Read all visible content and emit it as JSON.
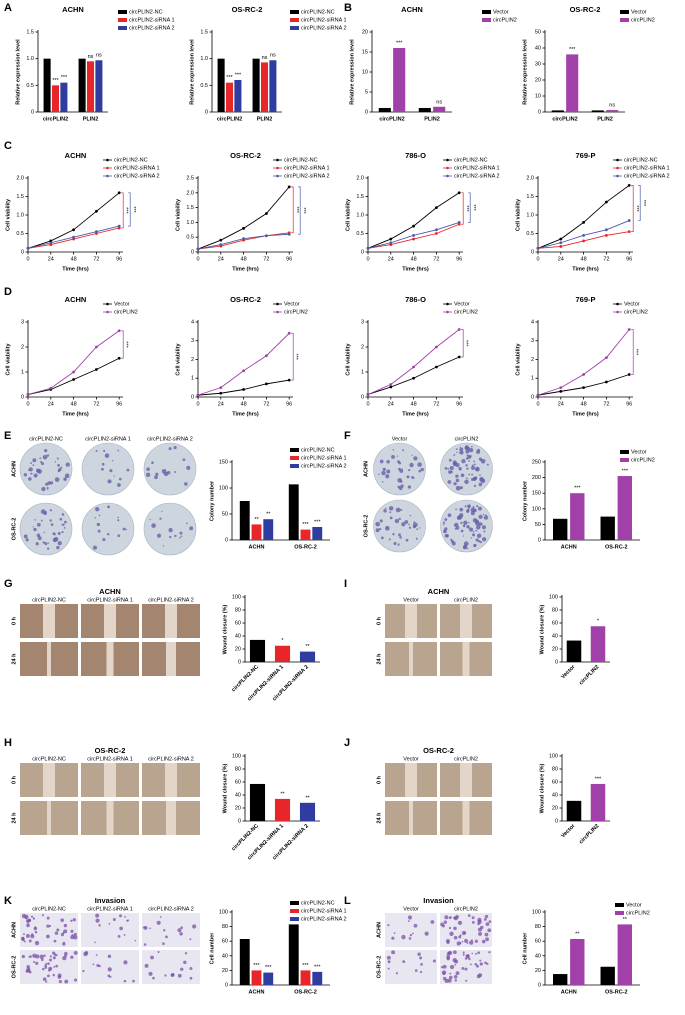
{
  "panel_labels": [
    "A",
    "B",
    "C",
    "D",
    "E",
    "F",
    "G",
    "I",
    "H",
    "J",
    "K",
    "L"
  ],
  "chart_data": [
    {
      "type": "bar",
      "title": "ACHN",
      "categories": [
        "circPLIN2",
        "PLIN2"
      ],
      "ylabel": "Relative expression level",
      "ylim": [
        0,
        1.5
      ],
      "yticks": [
        0,
        0.5,
        {
          "value": 1,
          "label": "1.0"
        },
        1.5
      ],
      "series": [
        {
          "name": "circPLIN2-NC",
          "color": "#000000",
          "values": [
            1,
            1
          ]
        },
        {
          "name": "circPLIN2-siRNA 1",
          "color": "#e8262a",
          "values": [
            0.5,
            0.95
          ],
          "annotations": [
            "***",
            "ns"
          ]
        },
        {
          "name": "circPLIN2-siRNA 2",
          "color": "#2e3d9f",
          "values": [
            0.55,
            0.97
          ],
          "annotations": [
            "***",
            "ns"
          ]
        }
      ]
    },
    {
      "type": "bar",
      "title": "OS-RC-2",
      "categories": [
        "circPLIN2",
        "PLIN2"
      ],
      "ylabel": "Relative expression level",
      "ylim": [
        0,
        1.5
      ],
      "yticks": [
        0,
        0.5,
        {
          "value": 1,
          "label": "1.0"
        },
        1.5
      ],
      "series": [
        {
          "name": "circPLIN2-NC",
          "color": "#000000",
          "values": [
            1,
            1
          ]
        },
        {
          "name": "circPLIN2-siRNA 1",
          "color": "#e8262a",
          "values": [
            0.55,
            0.93
          ],
          "annotations": [
            "***",
            "ns"
          ]
        },
        {
          "name": "circPLIN2-siRNA 2",
          "color": "#2e3d9f",
          "values": [
            0.6,
            0.97
          ],
          "annotations": [
            "***",
            "ns"
          ]
        }
      ]
    },
    {
      "type": "bar",
      "title": "ACHN",
      "categories": [
        "circPLIN2",
        "PLIN2"
      ],
      "ylabel": "Relative expression level",
      "ylim": [
        0,
        20
      ],
      "yticks": [
        0,
        5,
        10,
        15,
        20
      ],
      "series": [
        {
          "name": "Vector",
          "color": "#000000",
          "values": [
            1,
            1
          ]
        },
        {
          "name": "circPLIN2",
          "color": "#a040a8",
          "values": [
            16,
            1.3
          ],
          "annotations": [
            "***",
            "ns"
          ]
        }
      ]
    },
    {
      "type": "bar",
      "title": "OS-RC-2",
      "categories": [
        "circPLIN2",
        "PLIN2"
      ],
      "ylabel": "Relative expression level",
      "ylim": [
        0,
        50
      ],
      "yticks": [
        0,
        10,
        20,
        30,
        40,
        50
      ],
      "series": [
        {
          "name": "Vector",
          "color": "#000000",
          "values": [
            1,
            1
          ]
        },
        {
          "name": "circPLIN2",
          "color": "#a040a8",
          "values": [
            36,
            1.2
          ],
          "annotations": [
            "***",
            "ns"
          ]
        }
      ]
    },
    {
      "type": "line",
      "title": "ACHN",
      "x": [
        0,
        24,
        48,
        72,
        96
      ],
      "xlim": [
        0,
        100
      ],
      "xticks": [
        0,
        24,
        48,
        72,
        96
      ],
      "xlabel": "Time (hrs)",
      "ylabel": "Cell viability",
      "ylim": [
        0,
        2
      ],
      "yticks": [
        0,
        0.5,
        {
          "value": 1,
          "label": "1.0"
        },
        1.5,
        {
          "value": 2,
          "label": "2.0"
        }
      ],
      "annotations": [
        "***",
        "***"
      ],
      "series": [
        {
          "name": "circPLIN2-NC",
          "color": "#000000",
          "values": [
            0.1,
            0.3,
            0.6,
            1.1,
            1.6
          ]
        },
        {
          "name": "circPLIN2-siRNA 1",
          "color": "#e8262a",
          "values": [
            0.1,
            0.2,
            0.35,
            0.5,
            0.65
          ]
        },
        {
          "name": "circPLIN2-siRNA 2",
          "color": "#4a5aa8",
          "values": [
            0.1,
            0.25,
            0.4,
            0.55,
            0.7
          ]
        }
      ]
    },
    {
      "type": "line",
      "title": "OS-RC-2",
      "x": [
        0,
        24,
        48,
        72,
        96
      ],
      "xlim": [
        0,
        100
      ],
      "xticks": [
        0,
        24,
        48,
        72,
        96
      ],
      "xlabel": "Time (hrs)",
      "ylabel": "Cell viability",
      "ylim": [
        0,
        2.5
      ],
      "yticks": [
        0,
        0.5,
        {
          "value": 1,
          "label": "1.0"
        },
        1.5,
        {
          "value": 2,
          "label": "2.0"
        },
        2.5
      ],
      "annotations": [
        "***",
        "***"
      ],
      "series": [
        {
          "name": "circPLIN2-NC",
          "color": "#000000",
          "values": [
            0.1,
            0.4,
            0.8,
            1.3,
            2.2
          ]
        },
        {
          "name": "circPLIN2-siRNA 1",
          "color": "#e8262a",
          "values": [
            0.1,
            0.2,
            0.4,
            0.55,
            0.65
          ]
        },
        {
          "name": "circPLIN2-siRNA 2",
          "color": "#4a5aa8",
          "values": [
            0.1,
            0.25,
            0.45,
            0.55,
            0.6
          ]
        }
      ]
    },
    {
      "type": "line",
      "title": "786-O",
      "x": [
        0,
        24,
        48,
        72,
        96
      ],
      "xlim": [
        0,
        100
      ],
      "xticks": [
        0,
        24,
        48,
        72,
        96
      ],
      "xlabel": "Time (hrs)",
      "ylabel": "Cell viability",
      "ylim": [
        0,
        2
      ],
      "yticks": [
        0,
        0.5,
        {
          "value": 1,
          "label": "1.0"
        },
        1.5,
        {
          "value": 2,
          "label": "2.0"
        }
      ],
      "annotations": [
        "***",
        "***"
      ],
      "series": [
        {
          "name": "circPLIN2-NC",
          "color": "#000000",
          "values": [
            0.1,
            0.35,
            0.7,
            1.2,
            1.6
          ]
        },
        {
          "name": "circPLIN2-siRNA 1",
          "color": "#e8262a",
          "values": [
            0.1,
            0.2,
            0.35,
            0.5,
            0.75
          ]
        },
        {
          "name": "circPLIN2-siRNA 2",
          "color": "#4a5aa8",
          "values": [
            0.1,
            0.25,
            0.45,
            0.6,
            0.8
          ]
        }
      ]
    },
    {
      "type": "line",
      "title": "769-P",
      "x": [
        0,
        24,
        48,
        72,
        96
      ],
      "xlim": [
        0,
        100
      ],
      "xticks": [
        0,
        24,
        48,
        72,
        96
      ],
      "xlabel": "Time (hrs)",
      "ylabel": "Cell viability",
      "ylim": [
        0,
        2
      ],
      "yticks": [
        0,
        0.5,
        {
          "value": 1,
          "label": "1.0"
        },
        1.5,
        {
          "value": 2,
          "label": "2.0"
        }
      ],
      "annotations": [
        "***",
        "***"
      ],
      "series": [
        {
          "name": "circPLIN2-NC",
          "color": "#000000",
          "values": [
            0.1,
            0.35,
            0.8,
            1.35,
            1.8
          ]
        },
        {
          "name": "circPLIN2-siRNA 1",
          "color": "#e8262a",
          "values": [
            0.1,
            0.15,
            0.3,
            0.45,
            0.55
          ]
        },
        {
          "name": "circPLIN2-siRNA 2",
          "color": "#4a5aa8",
          "values": [
            0.1,
            0.25,
            0.45,
            0.6,
            0.85
          ]
        }
      ]
    },
    {
      "type": "line",
      "title": "ACHN",
      "x": [
        0,
        24,
        48,
        72,
        96
      ],
      "xlim": [
        0,
        100
      ],
      "xticks": [
        0,
        24,
        48,
        72,
        96
      ],
      "xlabel": "Time (hrs)",
      "ylabel": "Cell viability",
      "ylim": [
        0,
        3
      ],
      "yticks": [
        0,
        1,
        2,
        3
      ],
      "annotations": [
        "***"
      ],
      "series": [
        {
          "name": "Vector",
          "color": "#000000",
          "values": [
            0.1,
            0.3,
            0.7,
            1.1,
            1.55
          ]
        },
        {
          "name": "circPLIN2",
          "color": "#a040a8",
          "values": [
            0.1,
            0.35,
            1.0,
            2.0,
            2.65
          ]
        }
      ]
    },
    {
      "type": "line",
      "title": "OS-RC-2",
      "x": [
        0,
        24,
        48,
        72,
        96
      ],
      "xlim": [
        0,
        100
      ],
      "xticks": [
        0,
        24,
        48,
        72,
        96
      ],
      "xlabel": "Time (hrs)",
      "ylabel": "Cell viability",
      "ylim": [
        0,
        4
      ],
      "yticks": [
        0,
        1,
        2,
        3,
        4
      ],
      "annotations": [
        "***"
      ],
      "series": [
        {
          "name": "Vector",
          "color": "#000000",
          "values": [
            0.1,
            0.2,
            0.4,
            0.7,
            0.9
          ]
        },
        {
          "name": "circPLIN2",
          "color": "#a040a8",
          "values": [
            0.1,
            0.5,
            1.4,
            2.2,
            3.4
          ]
        }
      ]
    },
    {
      "type": "line",
      "title": "786-O",
      "x": [
        0,
        24,
        48,
        72,
        96
      ],
      "xlim": [
        0,
        100
      ],
      "xticks": [
        0,
        24,
        48,
        72,
        96
      ],
      "xlabel": "Time (hrs)",
      "ylabel": "Cell viability",
      "ylim": [
        0,
        3
      ],
      "yticks": [
        0,
        1,
        2,
        3
      ],
      "annotations": [
        "***"
      ],
      "series": [
        {
          "name": "Vector",
          "color": "#000000",
          "values": [
            0.1,
            0.4,
            0.75,
            1.2,
            1.6
          ]
        },
        {
          "name": "circPLIN2",
          "color": "#a040a8",
          "values": [
            0.1,
            0.5,
            1.2,
            2.0,
            2.7
          ]
        }
      ]
    },
    {
      "type": "line",
      "title": "769-P",
      "x": [
        0,
        24,
        48,
        72,
        96
      ],
      "xlim": [
        0,
        100
      ],
      "xticks": [
        0,
        24,
        48,
        72,
        96
      ],
      "xlabel": "Time (hrs)",
      "ylabel": "Cell viability",
      "ylim": [
        0,
        4
      ],
      "yticks": [
        0,
        1,
        2,
        3,
        4
      ],
      "annotations": [
        "***"
      ],
      "series": [
        {
          "name": "Vector",
          "color": "#000000",
          "values": [
            0.1,
            0.3,
            0.5,
            0.8,
            1.2
          ]
        },
        {
          "name": "circPLIN2",
          "color": "#a040a8",
          "values": [
            0.1,
            0.5,
            1.2,
            2.1,
            3.6
          ]
        }
      ]
    },
    {
      "type": "bar",
      "categories": [
        "ACHN",
        "OS-RC-2"
      ],
      "ylabel": "Colony number",
      "ylim": [
        0,
        150
      ],
      "yticks": [
        0,
        50,
        100,
        150
      ],
      "series": [
        {
          "name": "circPLIN2-NC",
          "color": "#000000",
          "values": [
            75,
            107
          ]
        },
        {
          "name": "circPLIN2-siRNA 1",
          "color": "#e8262a",
          "values": [
            30,
            20
          ],
          "annotations": [
            "**",
            "***"
          ]
        },
        {
          "name": "circPLIN2-siRNA 2",
          "color": "#2e3d9f",
          "values": [
            40,
            25
          ],
          "annotations": [
            "**",
            "***"
          ]
        }
      ]
    },
    {
      "type": "bar",
      "categories": [
        "ACHN",
        "OS-RC-2"
      ],
      "ylabel": "Colony number",
      "ylim": [
        0,
        250
      ],
      "yticks": [
        0,
        50,
        100,
        150,
        200,
        250
      ],
      "series": [
        {
          "name": "Vector",
          "color": "#000000",
          "values": [
            68,
            75
          ]
        },
        {
          "name": "circPLIN2",
          "color": "#a040a8",
          "values": [
            150,
            205
          ],
          "annotations": [
            "***",
            "***"
          ]
        }
      ]
    },
    {
      "type": "bar",
      "categories": [
        "circPLIN2-NC",
        "circPLIN2-siRNA 1",
        "circPLIN2-siRNA 2"
      ],
      "values": [
        34,
        25,
        16
      ],
      "colors": [
        "#000000",
        "#e8262a",
        "#2e3d9f"
      ],
      "annotations": [
        null,
        "*",
        "**"
      ],
      "ylabel": "Wound closure (%)",
      "ylim": [
        0,
        100
      ],
      "yticks": [
        0,
        20,
        40,
        60,
        80,
        100
      ]
    },
    {
      "type": "bar",
      "categories": [
        "Vector",
        "circPLIN2"
      ],
      "values": [
        33,
        55
      ],
      "colors": [
        "#000000",
        "#a040a8"
      ],
      "annotations": [
        null,
        "*"
      ],
      "ylabel": "Wound closure (%)",
      "ylim": [
        0,
        100
      ],
      "yticks": [
        0,
        20,
        40,
        60,
        80,
        100
      ]
    },
    {
      "type": "bar",
      "categories": [
        "circPLIN2-NC",
        "circPLIN2-siRNA 1",
        "circPLIN2-siRNA 2"
      ],
      "values": [
        57,
        34,
        28
      ],
      "colors": [
        "#000000",
        "#e8262a",
        "#2e3d9f"
      ],
      "annotations": [
        null,
        "**",
        "**"
      ],
      "ylabel": "Wound closure (%)",
      "ylim": [
        0,
        100
      ],
      "yticks": [
        0,
        20,
        40,
        60,
        80,
        100
      ]
    },
    {
      "type": "bar",
      "categories": [
        "Vector",
        "circPLIN2"
      ],
      "values": [
        31,
        57
      ],
      "colors": [
        "#000000",
        "#a040a8"
      ],
      "annotations": [
        null,
        "***"
      ],
      "ylabel": "Wound closure (%)",
      "ylim": [
        0,
        100
      ],
      "yticks": [
        0,
        20,
        40,
        60,
        80,
        100
      ]
    },
    {
      "type": "bar",
      "categories": [
        "ACHN",
        "OS-RC-2"
      ],
      "ylabel": "Cell number",
      "ylim": [
        0,
        100
      ],
      "yticks": [
        0,
        20,
        40,
        60,
        80,
        100
      ],
      "series": [
        {
          "name": "circPLIN2-NC",
          "color": "#000000",
          "values": [
            63,
            83
          ]
        },
        {
          "name": "circPLIN2-siRNA 1",
          "color": "#e8262a",
          "values": [
            20,
            20
          ],
          "annotations": [
            "***",
            "***"
          ]
        },
        {
          "name": "circPLIN2-siRNA 2",
          "color": "#2e3d9f",
          "values": [
            17,
            18
          ],
          "annotations": [
            "***",
            "***"
          ]
        }
      ]
    },
    {
      "type": "bar",
      "categories": [
        "ACHN",
        "OS-RC-2"
      ],
      "ylabel": "Cell number",
      "ylim": [
        0,
        100
      ],
      "yticks": [
        0,
        20,
        40,
        60,
        80,
        100
      ],
      "series": [
        {
          "name": "Vector",
          "color": "#000000",
          "values": [
            15,
            25
          ]
        },
        {
          "name": "circPLIN2",
          "color": "#a040a8",
          "values": [
            63,
            83
          ],
          "annotations": [
            "**",
            "**"
          ]
        }
      ]
    }
  ],
  "image_panels": [
    {
      "columns": [
        "circPLIN2-NC",
        "circPLIN2-siRNA 1",
        "circPLIN2-siRNA 2"
      ],
      "rows": [
        "ACHN",
        "OS-RC-2"
      ]
    },
    {
      "columns": [
        "Vector",
        "circPLIN2"
      ],
      "rows": [
        "ACHN",
        "OS-RC-2"
      ]
    },
    {
      "title": "ACHN",
      "columns": [
        "circPLIN2-NC",
        "circPLIN2-siRNA 1",
        "circPLIN2-siRNA 2"
      ],
      "rows": [
        "0 h",
        "24 h"
      ]
    },
    {
      "title": "ACHN",
      "columns": [
        "Vector",
        "circPLIN2"
      ],
      "rows": [
        "0 h",
        "24 h"
      ]
    },
    {
      "title": "OS-RC-2",
      "columns": [
        "circPLIN2-NC",
        "circPLIN2-siRNA 1",
        "circPLIN2-siRNA 2"
      ],
      "rows": [
        "0 h",
        "24 h"
      ]
    },
    {
      "title": "OS-RC-2",
      "columns": [
        "Vector",
        "circPLIN2"
      ],
      "rows": [
        "0 h",
        "24 h"
      ]
    },
    {
      "title": "Invasion",
      "columns": [
        "circPLIN2-NC",
        "circPLIN2-siRNA 1",
        "circPLIN2-siRNA 2"
      ],
      "rows": [
        "ACHN",
        "OS-RC-2"
      ]
    },
    {
      "title": "Invasion",
      "columns": [
        "Vector",
        "circPLIN2"
      ],
      "rows": [
        "ACHN",
        "OS-RC-2"
      ]
    }
  ]
}
